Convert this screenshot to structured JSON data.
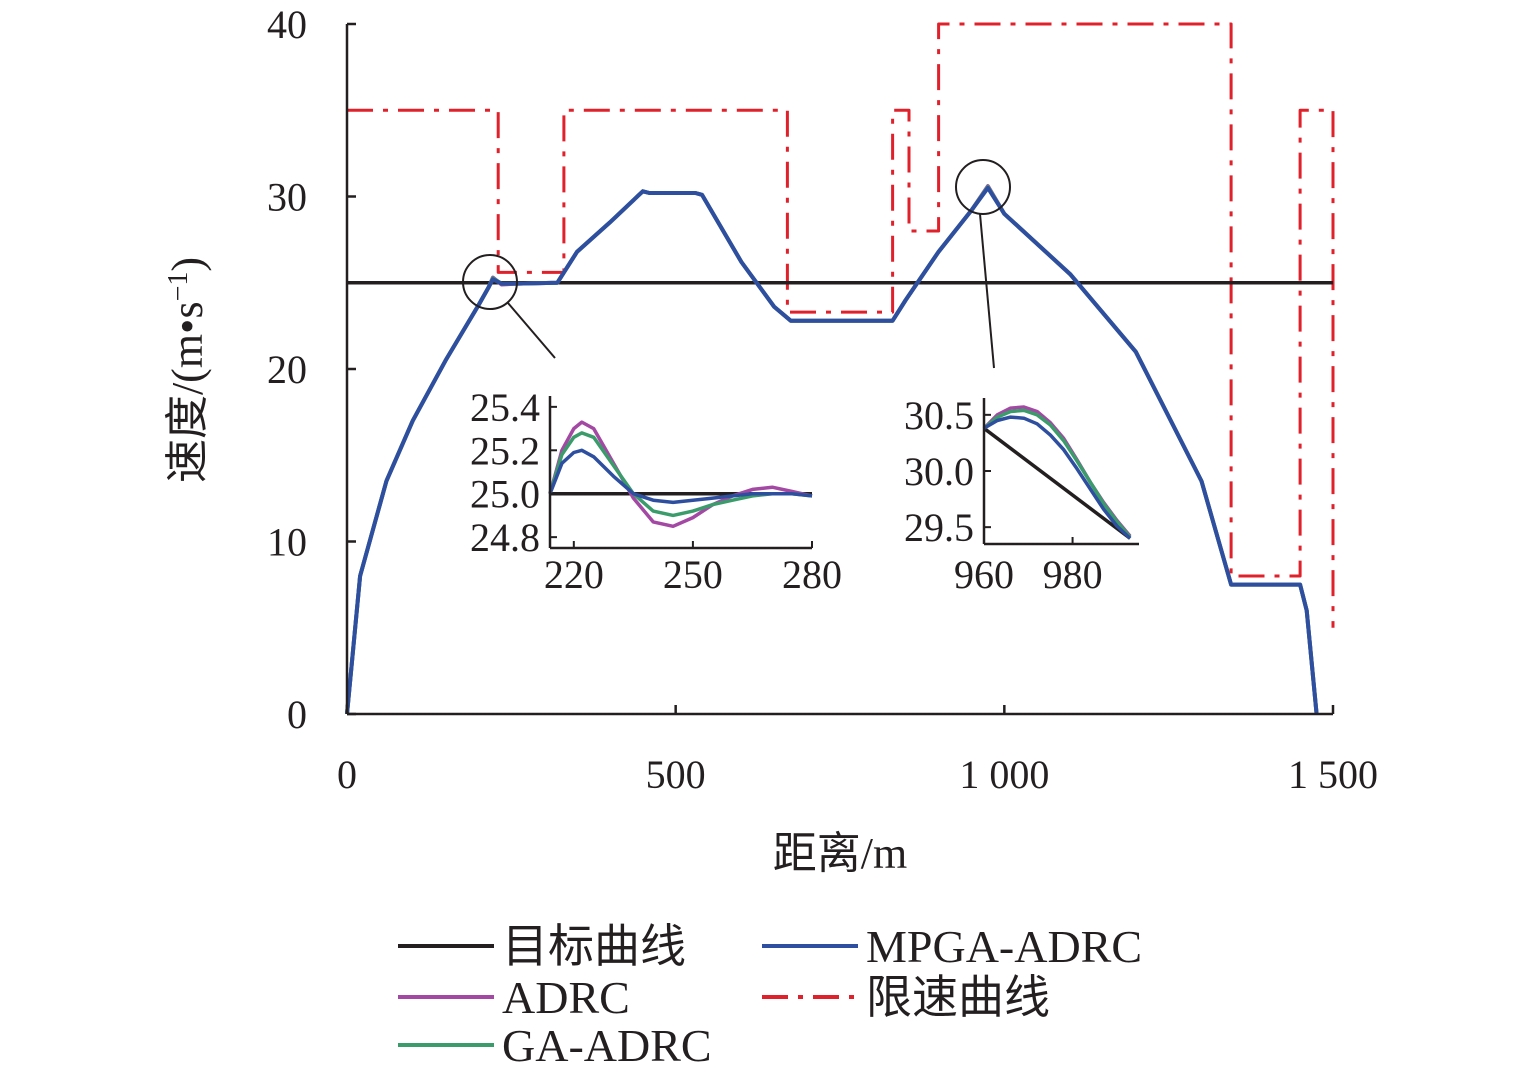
{
  "chart_data": {
    "type": "line",
    "title": "",
    "xlabel": "距离/m",
    "ylabel": "速度/(m•s",
    "ylabel_sup": "−1",
    "ylabel_close": ")",
    "xlim": [
      0,
      1500
    ],
    "ylim": [
      0,
      40
    ],
    "xticks": [
      0,
      500,
      1000,
      1500
    ],
    "xtick_labels": [
      "0",
      "500",
      "1 000",
      "1 500"
    ],
    "yticks": [
      0,
      10,
      20,
      30,
      40
    ],
    "ytick_labels": [
      "0",
      "10",
      "20",
      "30",
      "40"
    ],
    "colors": {
      "target": "#231f20",
      "adrc": "#a349a4",
      "ga_adrc": "#3a9c6a",
      "mpga_adrc": "#2e4f9f",
      "limit": "#e0202a"
    },
    "series": [
      {
        "name": "限速曲线",
        "key": "limit",
        "style": "dashdot",
        "x": [
          0,
          230,
          230,
          330,
          330,
          670,
          670,
          830,
          830,
          855,
          855,
          900,
          900,
          1345,
          1345,
          1450,
          1450,
          1500,
          1500
        ],
        "y": [
          35,
          35,
          25.6,
          25.6,
          35,
          35,
          23.3,
          23.3,
          35,
          35,
          28,
          28,
          40,
          40,
          8,
          8,
          35,
          35,
          5
        ]
      },
      {
        "name": "目标曲线",
        "key": "target",
        "style": "solid",
        "x": [
          0,
          1500
        ],
        "y": [
          25,
          25
        ]
      },
      {
        "name": "ADRC",
        "key": "adrc",
        "style": "solid",
        "x": [
          0,
          20,
          60,
          100,
          150,
          200,
          215,
          222,
          235,
          260,
          320,
          350,
          400,
          450,
          460,
          530,
          540,
          600,
          650,
          675,
          700,
          830,
          850,
          900,
          950,
          975,
          1000,
          1100,
          1200,
          1300,
          1345,
          1360,
          1440,
          1450,
          1460,
          1470,
          1475
        ],
        "y": [
          0,
          8,
          13.5,
          17,
          20.5,
          23.7,
          24.7,
          25.3,
          24.9,
          24.95,
          25,
          26.8,
          28.5,
          30.3,
          30.2,
          30.2,
          30.1,
          26.2,
          23.6,
          22.8,
          22.8,
          22.8,
          24,
          26.8,
          29.2,
          30.6,
          29,
          25.5,
          21,
          13.5,
          7.5,
          7.5,
          7.5,
          7.5,
          6,
          2,
          0
        ]
      },
      {
        "name": "GA-ADRC",
        "key": "ga_adrc",
        "style": "solid",
        "x": [
          0,
          20,
          60,
          100,
          150,
          200,
          215,
          222,
          235,
          260,
          320,
          350,
          400,
          450,
          460,
          530,
          540,
          600,
          650,
          675,
          700,
          830,
          850,
          900,
          950,
          975,
          1000,
          1100,
          1200,
          1300,
          1345,
          1360,
          1440,
          1450,
          1460,
          1470,
          1475
        ],
        "y": [
          0,
          8,
          13.5,
          17,
          20.5,
          23.7,
          24.7,
          25.25,
          24.95,
          24.95,
          25,
          26.8,
          28.5,
          30.3,
          30.2,
          30.2,
          30.1,
          26.2,
          23.6,
          22.8,
          22.8,
          22.8,
          24,
          26.8,
          29.2,
          30.55,
          29,
          25.5,
          21,
          13.5,
          7.5,
          7.5,
          7.5,
          7.5,
          6,
          2,
          0
        ]
      },
      {
        "name": "MPGA-ADRC",
        "key": "mpga_adrc",
        "style": "solid",
        "x": [
          0,
          20,
          60,
          100,
          150,
          200,
          215,
          222,
          235,
          260,
          320,
          350,
          400,
          450,
          460,
          530,
          540,
          600,
          650,
          675,
          700,
          830,
          850,
          900,
          950,
          975,
          1000,
          1100,
          1200,
          1300,
          1345,
          1360,
          1440,
          1450,
          1460,
          1470,
          1475
        ],
        "y": [
          0,
          8,
          13.5,
          17,
          20.5,
          23.7,
          24.7,
          25.2,
          24.95,
          24.95,
          25,
          26.8,
          28.5,
          30.3,
          30.2,
          30.2,
          30.1,
          26.2,
          23.6,
          22.8,
          22.8,
          22.8,
          24,
          26.8,
          29.2,
          30.5,
          29,
          25.5,
          21,
          13.5,
          7.5,
          7.5,
          7.5,
          7.5,
          6,
          2,
          0
        ]
      }
    ],
    "insets": [
      {
        "key": "inset1",
        "xlim": [
          214,
          280
        ],
        "ylim": [
          24.75,
          25.45
        ],
        "xticks": [
          220,
          250,
          280
        ],
        "xtick_labels": [
          "220",
          "250",
          "280"
        ],
        "yticks": [
          24.8,
          25.0,
          25.2,
          25.4
        ],
        "ytick_labels": [
          "24.8",
          "25.0",
          "25.2",
          "25.4"
        ],
        "zoom_center": [
          218,
          25
        ],
        "series": [
          {
            "key": "target",
            "x": [
              214,
              280
            ],
            "y": [
              25.0,
              25.0
            ]
          },
          {
            "key": "adrc",
            "x": [
              214,
              217,
              220,
              222,
              225,
              230,
              235,
              240,
              245,
              250,
              255,
              260,
              265,
              270,
              275,
              280
            ],
            "y": [
              25.0,
              25.2,
              25.3,
              25.33,
              25.3,
              25.14,
              24.98,
              24.87,
              24.85,
              24.89,
              24.95,
              24.99,
              25.02,
              25.03,
              25.01,
              24.99
            ]
          },
          {
            "key": "ga_adrc",
            "x": [
              214,
              217,
              220,
              222,
              225,
              230,
              235,
              240,
              245,
              250,
              255,
              260,
              265,
              270,
              275,
              280
            ],
            "y": [
              25.0,
              25.18,
              25.26,
              25.28,
              25.26,
              25.13,
              25.0,
              24.92,
              24.9,
              24.92,
              24.95,
              24.97,
              24.99,
              25.0,
              25.0,
              24.99
            ]
          },
          {
            "key": "mpga_adrc",
            "x": [
              214,
              217,
              220,
              222,
              225,
              230,
              235,
              240,
              245,
              250,
              255,
              260,
              265,
              270,
              275,
              280
            ],
            "y": [
              25.0,
              25.14,
              25.19,
              25.2,
              25.17,
              25.08,
              25.0,
              24.97,
              24.96,
              24.97,
              24.98,
              24.99,
              25.0,
              25.0,
              25.0,
              24.99
            ]
          }
        ]
      },
      {
        "key": "inset2",
        "xlim": [
          960,
          995
        ],
        "ylim": [
          29.35,
          30.65
        ],
        "xticks": [
          960,
          980
        ],
        "xtick_labels": [
          "960",
          "980"
        ],
        "yticks": [
          29.5,
          30.0,
          30.5
        ],
        "ytick_labels": [
          "29.5",
          "30.0",
          "30.5"
        ],
        "zoom_center": [
          973,
          30.6
        ],
        "series": [
          {
            "key": "target",
            "x": [
              960,
              993
            ],
            "y": [
              30.38,
              29.4
            ]
          },
          {
            "key": "adrc",
            "x": [
              960,
              963,
              966,
              969,
              972,
              975,
              978,
              981,
              984,
              987,
              990,
              993
            ],
            "y": [
              30.38,
              30.5,
              30.56,
              30.57,
              30.53,
              30.43,
              30.29,
              30.1,
              29.9,
              29.72,
              29.56,
              29.42
            ]
          },
          {
            "key": "ga_adrc",
            "x": [
              960,
              963,
              966,
              969,
              972,
              975,
              978,
              981,
              984,
              987,
              990,
              993
            ],
            "y": [
              30.38,
              30.48,
              30.53,
              30.54,
              30.5,
              30.41,
              30.27,
              30.09,
              29.9,
              29.71,
              29.55,
              29.41
            ]
          },
          {
            "key": "mpga_adrc",
            "x": [
              960,
              963,
              966,
              969,
              972,
              975,
              978,
              981,
              984,
              987,
              990,
              993
            ],
            "y": [
              30.38,
              30.45,
              30.48,
              30.47,
              30.42,
              30.32,
              30.19,
              30.02,
              29.84,
              29.66,
              29.51,
              29.4
            ]
          }
        ]
      }
    ],
    "legend": [
      {
        "key": "target",
        "label": "目标曲线",
        "style": "solid"
      },
      {
        "key": "mpga_adrc",
        "label": "MPGA-ADRC",
        "style": "solid"
      },
      {
        "key": "adrc",
        "label": "ADRC",
        "style": "solid"
      },
      {
        "key": "limit",
        "label": "限速曲线",
        "style": "dashdot"
      },
      {
        "key": "ga_adrc",
        "label": "GA-ADRC",
        "style": "solid"
      }
    ]
  }
}
